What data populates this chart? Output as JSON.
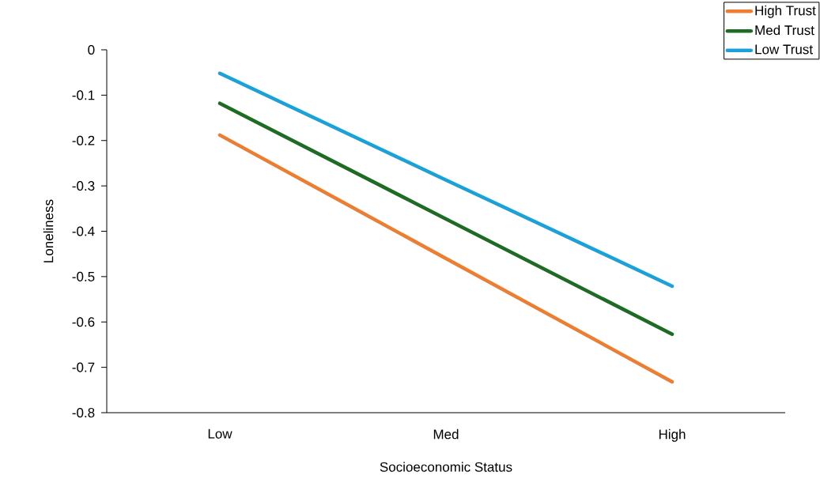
{
  "chart_data": {
    "type": "line",
    "xlabel": "Socioeconomic Status",
    "ylabel": "Loneliness",
    "categories": [
      "Low",
      "Med",
      "High"
    ],
    "series": [
      {
        "name": "High Trust",
        "color": "#ed7d31",
        "values": [
          -0.188,
          -0.46,
          -0.732
        ]
      },
      {
        "name": "Med Trust",
        "color": "#1e6b24",
        "values": [
          -0.118,
          -0.373,
          -0.627
        ]
      },
      {
        "name": "Low Trust",
        "color": "#1ba1d9",
        "values": [
          -0.052,
          -0.287,
          -0.521
        ]
      }
    ],
    "ylim": [
      -0.8,
      0
    ],
    "yticks": [
      0,
      -0.1,
      -0.2,
      -0.3,
      -0.4,
      -0.5,
      -0.6,
      -0.7,
      -0.8
    ],
    "grid": false,
    "legend": "top right",
    "marker": "none",
    "line_style": "solid"
  }
}
